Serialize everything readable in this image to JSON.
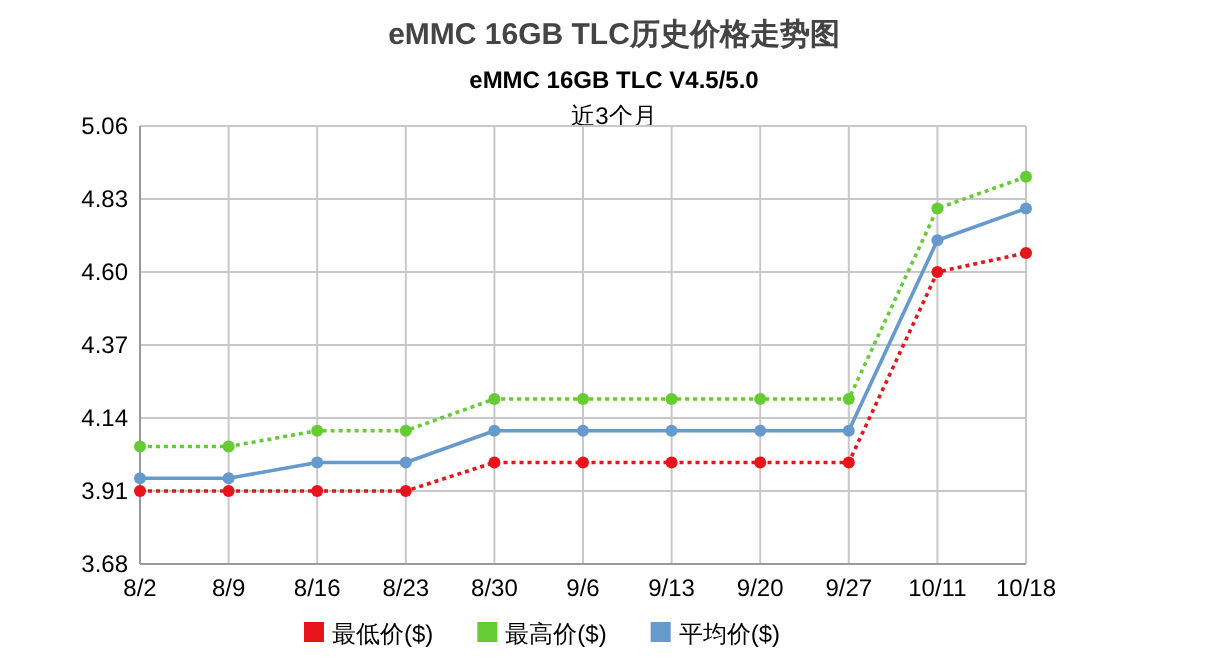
{
  "chart_data": {
    "type": "line",
    "title": "eMMC 16GB TLC历史价格走势图",
    "subtitle": "eMMC 16GB TLC V4.5/5.0",
    "annotations": [
      "近3个月"
    ],
    "categories": [
      "8/2",
      "8/9",
      "8/16",
      "8/23",
      "8/30",
      "9/6",
      "9/13",
      "9/20",
      "9/27",
      "10/11",
      "10/18"
    ],
    "series": [
      {
        "name": "最低价($)",
        "color": "#e8141b",
        "line_style": "dotted",
        "values": [
          3.91,
          3.91,
          3.91,
          3.91,
          4.0,
          4.0,
          4.0,
          4.0,
          4.0,
          4.6,
          4.66
        ]
      },
      {
        "name": "最高价($)",
        "color": "#66cc33",
        "line_style": "dotted",
        "values": [
          4.05,
          4.05,
          4.1,
          4.1,
          4.2,
          4.2,
          4.2,
          4.2,
          4.2,
          4.8,
          4.9
        ]
      },
      {
        "name": "平均价($)",
        "color": "#6699cc",
        "line_style": "solid",
        "values": [
          3.95,
          3.95,
          4.0,
          4.0,
          4.1,
          4.1,
          4.1,
          4.1,
          4.1,
          4.7,
          4.8
        ]
      }
    ],
    "ylim": [
      3.68,
      5.06
    ],
    "yticks": [
      {
        "value": 3.68,
        "label": "3.68"
      },
      {
        "value": 3.91,
        "label": "3.91"
      },
      {
        "value": 4.14,
        "label": "4.14"
      },
      {
        "value": 4.37,
        "label": "4.37"
      },
      {
        "value": 4.6,
        "label": "4.60"
      },
      {
        "value": 4.83,
        "label": "4.83"
      },
      {
        "value": 5.06,
        "label": "5.06"
      }
    ],
    "grid": true,
    "legend": "bottom",
    "marker": "circle"
  }
}
